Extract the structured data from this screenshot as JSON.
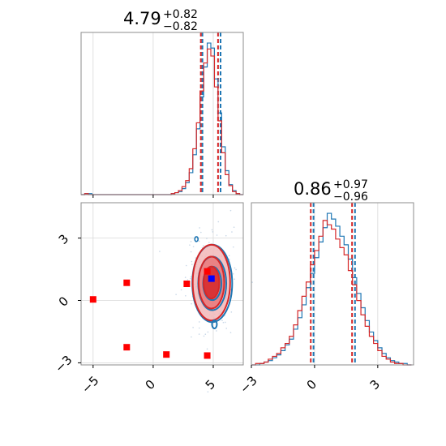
{
  "colors": {
    "series_a": "#1f77b4",
    "series_b": "#d62728",
    "marker_red": "#ff0000",
    "marker_blue": "#0000ff",
    "frame": "#8c8c8c",
    "grid": "#d9d9d9"
  },
  "chart_data": [
    {
      "type": "histogram",
      "panel": "top-left",
      "param": "x",
      "title": {
        "value": "4.79",
        "plus": "+0.82",
        "minus": "−0.82"
      },
      "xlim": [
        -6,
        7.5
      ],
      "x_ticks": [
        -5,
        0,
        5
      ],
      "grid": true,
      "quantile_lines": {
        "series_a": [
          4.1,
          5.61
        ],
        "series_b": [
          3.97,
          5.4
        ]
      },
      "series": [
        {
          "color_key": "series_a",
          "bin_edges": [
            -6,
            -5.7,
            -5.4,
            -5.1,
            -4.8,
            -4.5,
            -4.2,
            -3.9,
            -3.6,
            -3.3,
            -3.0,
            -2.7,
            -2.4,
            -2.1,
            -1.8,
            -1.5,
            -1.2,
            -0.9,
            -0.6,
            -0.3,
            0.0,
            0.3,
            0.6,
            0.9,
            1.2,
            1.5,
            1.8,
            2.1,
            2.4,
            2.7,
            3.0,
            3.3,
            3.6,
            3.9,
            4.2,
            4.5,
            4.8,
            5.1,
            5.4,
            5.7,
            6.0,
            6.3,
            6.6,
            6.9,
            7.2,
            7.5
          ],
          "counts": [
            0,
            1,
            1,
            0,
            0,
            0,
            0,
            0,
            0,
            0,
            0,
            0,
            0,
            0,
            0,
            0,
            0,
            0,
            0,
            0,
            0,
            0,
            0,
            0,
            0,
            1,
            2,
            3,
            6,
            12,
            22,
            40,
            66,
            98,
            128,
            152,
            147,
            116,
            82,
            48,
            24,
            10,
            4,
            1,
            0
          ]
        },
        {
          "color_key": "series_b",
          "bin_edges": [
            -6,
            -5.7,
            -5.4,
            -5.1,
            -4.8,
            -4.5,
            -4.2,
            -3.9,
            -3.6,
            -3.3,
            -3.0,
            -2.7,
            -2.4,
            -2.1,
            -1.8,
            -1.5,
            -1.2,
            -0.9,
            -0.6,
            -0.3,
            0.0,
            0.3,
            0.6,
            0.9,
            1.2,
            1.5,
            1.8,
            2.1,
            2.4,
            2.7,
            3.0,
            3.3,
            3.6,
            3.9,
            4.2,
            4.5,
            4.8,
            5.1,
            5.4,
            5.7,
            6.0,
            6.3,
            6.6,
            6.9,
            7.2,
            7.5
          ],
          "counts": [
            0,
            1,
            0,
            0,
            0,
            0,
            0,
            0,
            0,
            0,
            0,
            0,
            0,
            0,
            0,
            0,
            0,
            0,
            0,
            0,
            0,
            0,
            0,
            0,
            0,
            1,
            2,
            4,
            8,
            14,
            26,
            46,
            72,
            104,
            132,
            146,
            139,
            108,
            74,
            42,
            20,
            9,
            3,
            1,
            0
          ]
        }
      ]
    },
    {
      "type": "histogram",
      "panel": "bottom-right",
      "param": "y",
      "title": {
        "value": "0.86",
        "plus": "+0.97",
        "minus": "−0.96"
      },
      "xlim": [
        -3,
        4.7
      ],
      "x_ticks": [
        -3,
        0,
        3
      ],
      "grid": true,
      "quantile_lines": {
        "series_a": [
          -0.05,
          1.92
        ],
        "series_b": [
          -0.18,
          1.78
        ]
      },
      "series": [
        {
          "color_key": "series_a",
          "bin_edges": [
            -3.0,
            -2.8,
            -2.6,
            -2.4,
            -2.2,
            -2.0,
            -1.8,
            -1.6,
            -1.4,
            -1.2,
            -1.0,
            -0.8,
            -0.6,
            -0.4,
            -0.2,
            0.0,
            0.2,
            0.4,
            0.6,
            0.8,
            1.0,
            1.2,
            1.4,
            1.6,
            1.8,
            2.0,
            2.2,
            2.4,
            2.6,
            2.8,
            3.0,
            3.2,
            3.4,
            3.6,
            3.8,
            4.0,
            4.2,
            4.4,
            4.6
          ],
          "counts": [
            0,
            0,
            1,
            2,
            3,
            5,
            7,
            10,
            14,
            18,
            25,
            33,
            42,
            54,
            64,
            75,
            86,
            96,
            106,
            102,
            97,
            90,
            84,
            74,
            61,
            50,
            40,
            31,
            23,
            17,
            12,
            8,
            5,
            3,
            2,
            1,
            1,
            0
          ]
        },
        {
          "color_key": "series_b",
          "bin_edges": [
            -3.0,
            -2.8,
            -2.6,
            -2.4,
            -2.2,
            -2.0,
            -1.8,
            -1.6,
            -1.4,
            -1.2,
            -1.0,
            -0.8,
            -0.6,
            -0.4,
            -0.2,
            0.0,
            0.2,
            0.4,
            0.6,
            0.8,
            1.0,
            1.2,
            1.4,
            1.6,
            1.8,
            2.0,
            2.2,
            2.4,
            2.6,
            2.8,
            3.0,
            3.2,
            3.4,
            3.6,
            3.8,
            4.0,
            4.2,
            4.4,
            4.6
          ],
          "counts": [
            0,
            1,
            1,
            2,
            4,
            6,
            8,
            12,
            15,
            20,
            28,
            38,
            48,
            58,
            70,
            80,
            90,
            101,
            98,
            95,
            88,
            82,
            77,
            66,
            56,
            45,
            35,
            27,
            20,
            15,
            10,
            6,
            4,
            2,
            1,
            1,
            0,
            0
          ]
        }
      ]
    },
    {
      "type": "scatter",
      "panel": "bottom-left",
      "params": [
        "x",
        "y"
      ],
      "xlim": [
        -6,
        7.5
      ],
      "ylim": [
        -3.1,
        4.7
      ],
      "x_ticks": [
        -5,
        0,
        5
      ],
      "y_ticks": [
        -3,
        0,
        3
      ],
      "grid": true,
      "density": {
        "center": [
          4.85,
          0.86
        ],
        "sigma": [
          0.82,
          0.96
        ],
        "levels_sigma": [
          0.8,
          1.3,
          1.9
        ]
      },
      "series": [
        {
          "name": "red markers",
          "color_key": "marker_red",
          "x": [
            -5.0,
            -2.2,
            -2.2,
            1.1,
            2.8,
            4.5,
            4.5
          ],
          "y": [
            0.05,
            0.85,
            -2.25,
            -2.6,
            0.8,
            1.4,
            -2.65
          ]
        },
        {
          "name": "blue marker",
          "color_key": "marker_blue",
          "x": [
            4.85
          ],
          "y": [
            1.05
          ]
        }
      ]
    }
  ]
}
